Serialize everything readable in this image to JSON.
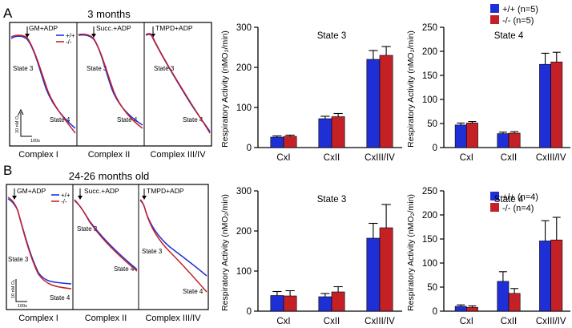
{
  "colors": {
    "wt": "#1f2fd6",
    "ko": "#c42127",
    "axis": "#000000"
  },
  "panels": [
    {
      "letter": "A",
      "title": "3 months",
      "legend": {
        "wt": "+/+ (n=5)",
        "ko": "-/- (n=5)"
      },
      "traces": {
        "wt_legend": "+/+",
        "ko_legend": "-/-",
        "scale_y": "10 nM O₂",
        "scale_x": "100s",
        "boxes": [
          {
            "name": "Complex I",
            "substrate": "GM+ADP",
            "state3": "State 3",
            "state4": "State 4"
          },
          {
            "name": "Complex II",
            "substrate": "Succ.+ADP",
            "state3": "State 3",
            "state4": "State 4"
          },
          {
            "name": "Complex III/IV",
            "substrate": "TMPD+ADP",
            "state3": "State 3",
            "state4": "State 4"
          }
        ]
      }
    },
    {
      "letter": "B",
      "title": "24-26 months old",
      "legend": {
        "wt": "+/+ (n=4)",
        "ko": "-/- (n=4)"
      },
      "traces": {
        "wt_legend": "+/+",
        "ko_legend": "-/-",
        "scale_y": "10 nM O₂",
        "scale_x": "100s",
        "boxes": [
          {
            "name": "Complex I",
            "substrate": "GM+ADP",
            "state3": "State 3",
            "state4": "State 4"
          },
          {
            "name": "Complex II",
            "substrate": "Succ.+ADP",
            "state3": "State 3",
            "state4": "State 4"
          },
          {
            "name": "Complex III/IV",
            "substrate": "TMPD+ADP",
            "state3": "State 3",
            "state4": "State 4"
          }
        ]
      }
    }
  ],
  "chart_data": [
    {
      "type": "bar",
      "panel": "A",
      "title": "State 3",
      "ylabel": "Respiratory Activity (nMO₂/min)",
      "ylim": [
        0,
        300
      ],
      "yticks": [
        "0",
        "100",
        "200",
        "300"
      ],
      "categories": [
        "CxI",
        "CxII",
        "CxIII/IV"
      ],
      "series": [
        {
          "name": "+/+",
          "values": [
            26,
            72,
            220
          ],
          "errors": [
            3,
            6,
            22
          ]
        },
        {
          "name": "-/-",
          "values": [
            28,
            77,
            230
          ],
          "errors": [
            3,
            8,
            22
          ]
        }
      ]
    },
    {
      "type": "bar",
      "panel": "A",
      "title": "State 4",
      "ylabel": "Respiratory Activity (nMO₂/min)",
      "ylim": [
        0,
        250
      ],
      "yticks": [
        "0",
        "50",
        "100",
        "150",
        "200",
        "250"
      ],
      "categories": [
        "CxI",
        "CxII",
        "CxIII/IV"
      ],
      "series": [
        {
          "name": "+/+",
          "values": [
            47,
            29,
            173
          ],
          "errors": [
            4,
            3,
            23
          ]
        },
        {
          "name": "-/-",
          "values": [
            51,
            30,
            178
          ],
          "errors": [
            3,
            3,
            20
          ]
        }
      ]
    },
    {
      "type": "bar",
      "panel": "B",
      "title": "State 3",
      "ylabel": "Respiratory Activity (nMO₂/min)",
      "ylim": [
        0,
        300
      ],
      "yticks": [
        "0",
        "100",
        "200",
        "300"
      ],
      "categories": [
        "CxI",
        "CxII",
        "CxIII/IV"
      ],
      "series": [
        {
          "name": "+/+",
          "values": [
            39,
            36,
            182
          ],
          "errors": [
            10,
            8,
            37
          ]
        },
        {
          "name": "-/-",
          "values": [
            38,
            48,
            208
          ],
          "errors": [
            13,
            13,
            58
          ]
        }
      ]
    },
    {
      "type": "bar",
      "panel": "B",
      "title": "State 4",
      "ylabel": "Respiratory Activity (nMO₂/min)",
      "ylim": [
        0,
        250
      ],
      "yticks": [
        "0",
        "50",
        "100",
        "150",
        "200",
        "250"
      ],
      "categories": [
        "CxI",
        "CxII",
        "CxIII/IV"
      ],
      "series": [
        {
          "name": "+/+",
          "values": [
            10,
            62,
            146
          ],
          "errors": [
            3,
            20,
            42
          ]
        },
        {
          "name": "-/-",
          "values": [
            8,
            37,
            148
          ],
          "errors": [
            3,
            10,
            47
          ]
        }
      ]
    }
  ]
}
